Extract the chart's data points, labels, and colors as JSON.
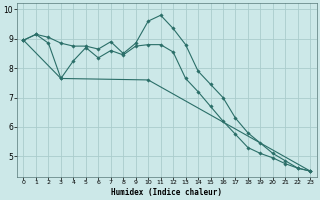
{
  "xlabel": "Humidex (Indice chaleur)",
  "bg_color": "#cce8e8",
  "grid_color": "#aacccc",
  "line_color": "#2a6e68",
  "line1_x": [
    0,
    1,
    2,
    3,
    4,
    5,
    6,
    7,
    8,
    9,
    10,
    11,
    12,
    13,
    14,
    15,
    16,
    17,
    18,
    19,
    20,
    21,
    22,
    23
  ],
  "line1_y": [
    8.95,
    9.15,
    9.05,
    8.85,
    8.75,
    8.75,
    8.65,
    8.9,
    8.5,
    8.85,
    9.6,
    9.8,
    9.35,
    8.8,
    7.9,
    7.45,
    7.0,
    6.3,
    5.8,
    5.45,
    5.1,
    4.85,
    4.6,
    4.5
  ],
  "line2_x": [
    0,
    1,
    2,
    3,
    4,
    5,
    6,
    7,
    8,
    9,
    10,
    11,
    12,
    13,
    14,
    15,
    16,
    17,
    18,
    19,
    20,
    21,
    22,
    23
  ],
  "line2_y": [
    8.95,
    9.15,
    8.85,
    7.65,
    8.25,
    8.7,
    8.35,
    8.6,
    8.45,
    8.75,
    8.8,
    8.8,
    8.55,
    7.65,
    7.2,
    6.7,
    6.2,
    5.75,
    5.3,
    5.1,
    4.95,
    4.75,
    4.6,
    4.5
  ],
  "line3_x": [
    0,
    3,
    10,
    23
  ],
  "line3_y": [
    8.95,
    7.65,
    7.6,
    4.5
  ],
  "xlim": [
    -0.5,
    23.5
  ],
  "ylim": [
    4.3,
    10.2
  ],
  "yticks": [
    5,
    6,
    7,
    8,
    9,
    10
  ],
  "xticks": [
    0,
    1,
    2,
    3,
    4,
    5,
    6,
    7,
    8,
    9,
    10,
    11,
    12,
    13,
    14,
    15,
    16,
    17,
    18,
    19,
    20,
    21,
    22,
    23
  ],
  "marker": "D",
  "marker_size": 1.8,
  "line_width": 0.8
}
